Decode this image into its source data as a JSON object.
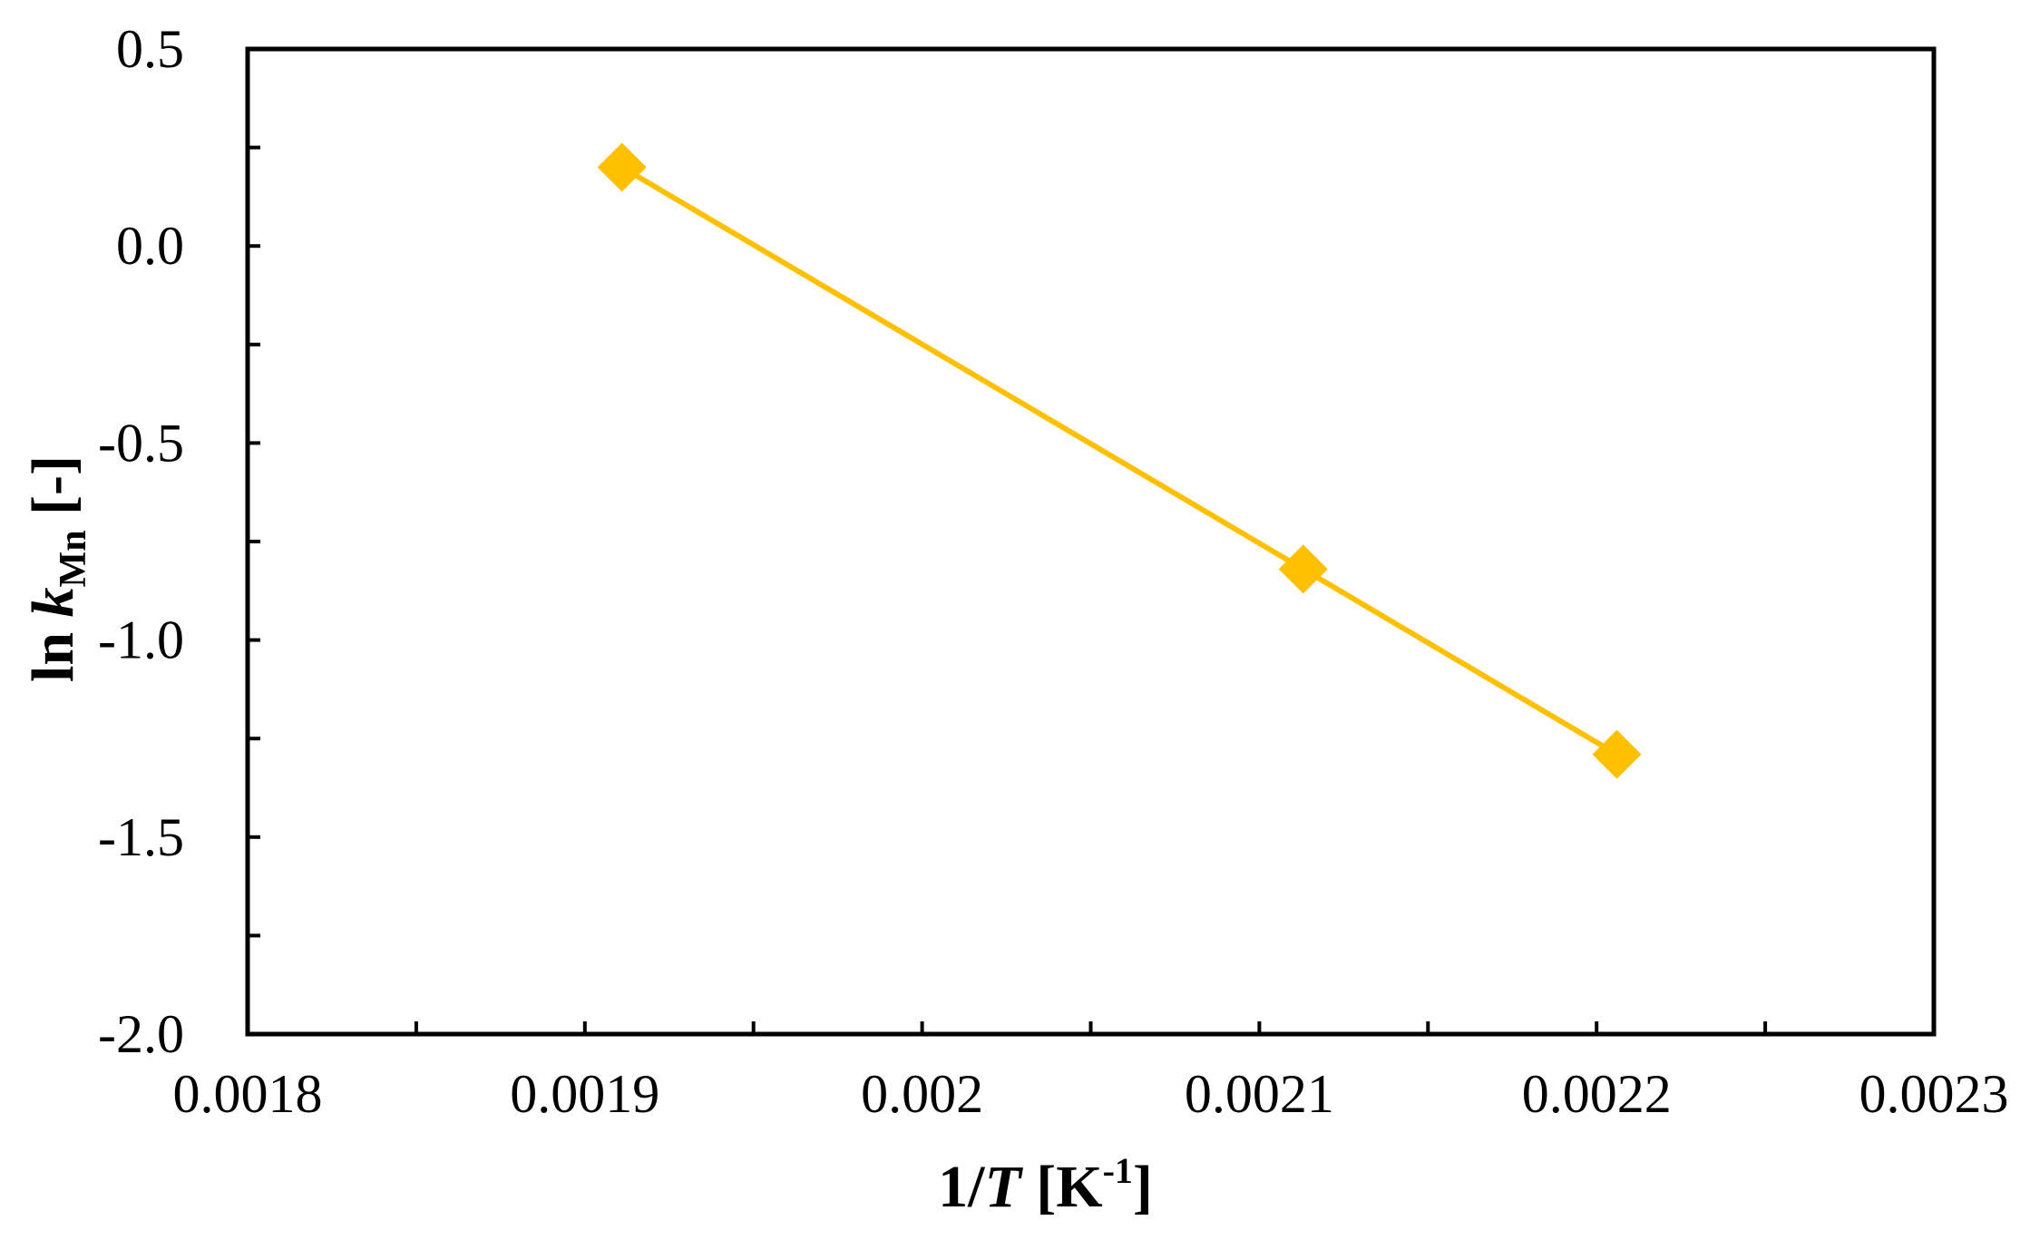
{
  "chart_data": {
    "type": "scatter",
    "title": "",
    "xlabel": {
      "prefix": "1/",
      "var": "T",
      "bracket_open": " [K",
      "sup": "-1",
      "bracket_close": "]"
    },
    "ylabel": {
      "prefix": "ln ",
      "var": "k",
      "sub": "Mn",
      "suffix": " [-]"
    },
    "xlim": [
      0.0018,
      0.0023
    ],
    "ylim": [
      -2.0,
      0.5
    ],
    "x_ticks": [
      0.0018,
      0.0019,
      0.002,
      0.0021,
      0.0022,
      0.0023
    ],
    "x_tick_labels": [
      "0.0018",
      "0.0019",
      "0.002",
      "0.0021",
      "0.0022",
      "0.0023"
    ],
    "x_minor_ticks": [
      0.00185,
      0.00195,
      0.00205,
      0.00215,
      0.00225
    ],
    "y_ticks": [
      0.5,
      0.0,
      -0.5,
      -1.0,
      -1.5,
      -2.0
    ],
    "y_tick_labels": [
      "0.5",
      "0.0",
      "-0.5",
      "-1.0",
      "-1.5",
      "-2.0"
    ],
    "y_minor_ticks": [
      0.25,
      -0.25,
      -0.75,
      -1.25,
      -1.75
    ],
    "grid": false,
    "series": [
      {
        "x": [
          0.001911,
          0.002113,
          0.002206
        ],
        "y": [
          0.2,
          -0.82,
          -1.29
        ],
        "color": "#FFC000",
        "marker": "diamond",
        "line": true
      }
    ]
  }
}
